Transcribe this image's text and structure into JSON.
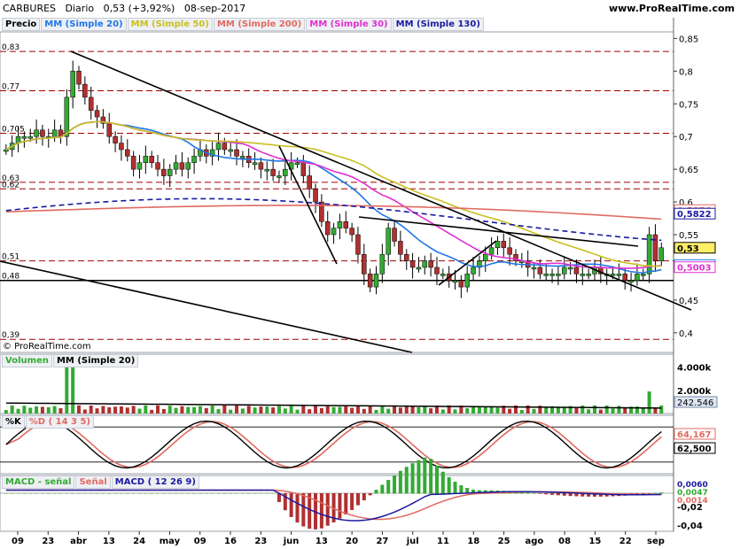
{
  "header": {
    "ticker": "CARBURES",
    "timeframe": "Diario",
    "quote": "0,53 (+3,92%)",
    "date": "08-sep-2017",
    "site": "www.ProRealTime.com"
  },
  "copyright": "© ProRealTime.com",
  "colors": {
    "sma20": "#1f77e6",
    "sma50": "#c8c020",
    "sma200": "#e06a60",
    "sma30": "#e030d0",
    "sma130": "#1a1aa0",
    "up": "#33aa33",
    "down": "#b03030",
    "grid_red": "#a00000"
  },
  "price_panel": {
    "legend": [
      {
        "label": "Precio",
        "color": "#000000"
      },
      {
        "label": "MM (Simple 20)",
        "color": "#1f77e6"
      },
      {
        "label": "MM (Simple 50)",
        "color": "#c8c020"
      },
      {
        "label": "MM (Simple 200)",
        "color": "#e06a60"
      },
      {
        "label": "MM (Simple 30)",
        "color": "#e030d0"
      },
      {
        "label": "MM (Simple 130)",
        "color": "#1a1aa0"
      }
    ],
    "axis_ticks": [
      "0,85",
      "0,8",
      "0,75",
      "0,7",
      "0,65",
      "0,6",
      "0,55",
      "0,5",
      "0,45",
      "0,4"
    ],
    "level_lines": [
      {
        "value": 0.83,
        "label": "0,83"
      },
      {
        "value": 0.77,
        "label": "0,77"
      },
      {
        "value": 0.705,
        "label": "0,705"
      },
      {
        "value": 0.63,
        "label": "0,63"
      },
      {
        "value": 0.62,
        "label": "0,62"
      },
      {
        "value": 0.51,
        "label": "0,51"
      },
      {
        "value": 0.39,
        "label": "0,39"
      }
    ],
    "support_line": {
      "value": 0.48,
      "label": "0,48"
    },
    "value_tags": [
      {
        "value": 0.5876,
        "label": "0,5876",
        "color": "#e06a60"
      },
      {
        "value": 0.5822,
        "label": "0,5822",
        "color": "#1a1aa0"
      },
      {
        "value": 0.53,
        "label": "0,53",
        "color": "#000000"
      },
      {
        "value": 0.5035,
        "label": "0,5035",
        "color": "#1f77e6"
      },
      {
        "value": 0.5003,
        "label": "0,5003",
        "color": "#e030d0"
      }
    ]
  },
  "volume_panel": {
    "legend": [
      {
        "label": "Volumen",
        "color": "#33aa33"
      },
      {
        "label": "MM (Simple 20)",
        "color": "#000000"
      }
    ],
    "axis_ticks": [
      "4.000k",
      "2.000k"
    ],
    "value_tag": "242.546"
  },
  "stoch_panel": {
    "legend": [
      {
        "label": "%K",
        "color": "#000000"
      },
      {
        "label": "%D ( 14 3 5)",
        "color": "#e06a60"
      }
    ],
    "value_tags": [
      "64,167",
      "62,500"
    ]
  },
  "macd_panel": {
    "legend": [
      {
        "label": "MACD - señal",
        "color": "#33aa33"
      },
      {
        "label": "Señal",
        "color": "#e06a60"
      },
      {
        "label": "MACD ( 12 26 9)",
        "color": "#1a1aa0"
      }
    ],
    "axis_ticks": [
      "-0,02",
      "-0,04"
    ],
    "value_tags": [
      "0,0060",
      "0,0047",
      "0,0014"
    ]
  },
  "x_axis": {
    "ticks": [
      "09",
      "23",
      "abr",
      "13",
      "24",
      "may",
      "09",
      "16",
      "23",
      "jun",
      "13",
      "20",
      "27",
      "jul",
      "11",
      "18",
      "25",
      "ago",
      "08",
      "15",
      "22",
      "sep"
    ]
  },
  "chart_data": {
    "type": "candlestick",
    "title": "",
    "ylim": [
      0.37,
      0.86
    ],
    "x_tick_labels": [
      "09",
      "23",
      "abr",
      "13",
      "24",
      "may",
      "09",
      "16",
      "23",
      "jun",
      "13",
      "20",
      "27",
      "jul",
      "11",
      "18",
      "25",
      "ago",
      "08",
      "15",
      "22",
      "sep"
    ],
    "last_close": 0.53,
    "change": "+3,92%",
    "close_series": [
      0.68,
      0.69,
      0.7,
      0.7,
      0.7,
      0.71,
      0.7,
      0.7,
      0.71,
      0.7,
      0.76,
      0.8,
      0.78,
      0.76,
      0.74,
      0.73,
      0.72,
      0.7,
      0.69,
      0.68,
      0.67,
      0.65,
      0.66,
      0.67,
      0.66,
      0.65,
      0.64,
      0.65,
      0.66,
      0.65,
      0.66,
      0.67,
      0.68,
      0.67,
      0.68,
      0.69,
      0.68,
      0.68,
      0.67,
      0.67,
      0.66,
      0.66,
      0.65,
      0.65,
      0.64,
      0.64,
      0.65,
      0.66,
      0.66,
      0.64,
      0.62,
      0.6,
      0.57,
      0.55,
      0.56,
      0.57,
      0.56,
      0.55,
      0.52,
      0.49,
      0.47,
      0.49,
      0.52,
      0.56,
      0.54,
      0.52,
      0.51,
      0.5,
      0.5,
      0.51,
      0.5,
      0.49,
      0.49,
      0.48,
      0.48,
      0.47,
      0.49,
      0.5,
      0.51,
      0.52,
      0.53,
      0.54,
      0.53,
      0.52,
      0.51,
      0.51,
      0.5,
      0.5,
      0.49,
      0.49,
      0.49,
      0.49,
      0.5,
      0.5,
      0.49,
      0.49,
      0.49,
      0.5,
      0.49,
      0.49,
      0.49,
      0.49,
      0.48,
      0.48,
      0.49,
      0.49,
      0.55,
      0.51,
      0.53
    ]
  }
}
